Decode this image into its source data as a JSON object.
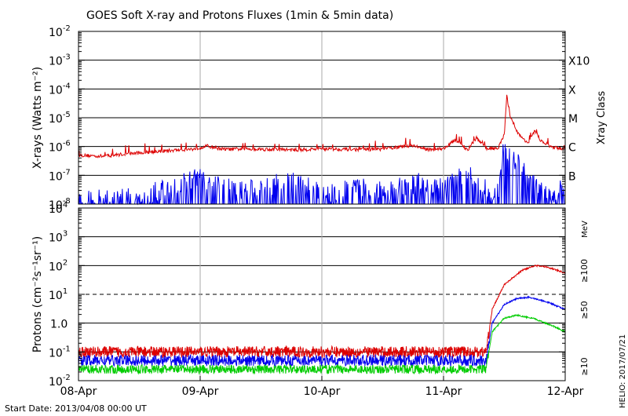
{
  "chart_data": [
    {
      "type": "line",
      "title": "GOES Soft X-ray and Protons Fluxes   (1min & 5min data)",
      "ylabel": "X-rays (Watts m⁻²)",
      "yscale": "log",
      "ylim_exp": [
        -8,
        -2
      ],
      "ytick_exps": [
        -8,
        -7,
        -6,
        -5,
        -4,
        -3,
        -2
      ],
      "right_axis_label": "Xray Class",
      "class_labels": [
        {
          "label": "B",
          "exp": -7
        },
        {
          "label": "C",
          "exp": -6
        },
        {
          "label": "M",
          "exp": -5
        },
        {
          "label": "X",
          "exp": -4
        },
        {
          "label": "X10",
          "exp": -3
        }
      ],
      "x": [
        "08-Apr",
        "09-Apr",
        "10-Apr",
        "11-Apr",
        "12-Apr"
      ],
      "grid": true,
      "series": [
        {
          "color": "#dd0000",
          "points": [
            [
              0.0,
              5e-07
            ],
            [
              0.2,
              4.6e-07
            ],
            [
              0.4,
              5.6e-07
            ],
            [
              0.6,
              6.5e-07
            ],
            [
              0.8,
              7.5e-07
            ],
            [
              0.95,
              8.2e-07
            ],
            [
              1.05,
              1.05e-06
            ],
            [
              1.2,
              8e-07
            ],
            [
              1.4,
              8.3e-07
            ],
            [
              1.8,
              7.6e-07
            ],
            [
              2.0,
              8.4e-07
            ],
            [
              2.3,
              7.8e-07
            ],
            [
              2.5,
              8.2e-07
            ],
            [
              2.75,
              1.1e-06
            ],
            [
              2.85,
              8e-07
            ],
            [
              3.0,
              8.4e-07
            ],
            [
              3.1,
              1.7e-06
            ],
            [
              3.2,
              7.6e-07
            ],
            [
              3.27,
              2e-06
            ],
            [
              3.35,
              8.5e-07
            ],
            [
              3.45,
              9e-07
            ],
            [
              3.5,
              2.6e-06
            ],
            [
              3.52,
              5.5e-05
            ],
            [
              3.55,
              1.1e-05
            ],
            [
              3.62,
              2.5e-06
            ],
            [
              3.7,
              1.3e-06
            ],
            [
              3.75,
              3.5e-06
            ],
            [
              3.8,
              1.6e-06
            ],
            [
              3.9,
              9e-07
            ],
            [
              4.0,
              8.5e-07
            ]
          ]
        },
        {
          "color": "#0000ee",
          "points": [
            [
              0.0,
              1e-08
            ],
            [
              0.5,
              1.2e-08
            ],
            [
              0.8,
              3.5e-08
            ],
            [
              1.0,
              6e-08
            ],
            [
              1.3,
              2e-08
            ],
            [
              1.8,
              5e-08
            ],
            [
              2.0,
              1.5e-08
            ],
            [
              2.3,
              3e-08
            ],
            [
              2.5,
              2e-08
            ],
            [
              2.8,
              4e-08
            ],
            [
              3.0,
              2.5e-08
            ],
            [
              3.2,
              1e-07
            ],
            [
              3.35,
              2.5e-08
            ],
            [
              3.45,
              2e-08
            ],
            [
              3.5,
              1e-06
            ],
            [
              3.55,
              2.5e-07
            ],
            [
              3.65,
              1.5e-07
            ],
            [
              3.7,
              5e-08
            ],
            [
              3.8,
              2e-08
            ],
            [
              3.9,
              1e-08
            ],
            [
              4.0,
              4e-08
            ]
          ]
        }
      ]
    },
    {
      "type": "line",
      "ylabel": "Protons (cm⁻²s⁻¹sr⁻¹)",
      "yscale": "log",
      "ylim_exp": [
        -2,
        4
      ],
      "ytick_labels": [
        "10⁻²",
        "10⁻¹",
        "1.0",
        "10¹",
        "10²",
        "10³",
        "10⁴"
      ],
      "threshold": 10,
      "unit_label": "MeV",
      "x": [
        "08-Apr",
        "09-Apr",
        "10-Apr",
        "11-Apr",
        "12-Apr"
      ],
      "grid": true,
      "series": [
        {
          "name": "≥10",
          "color": "#dd0000",
          "points": [
            [
              0.0,
              0.1
            ],
            [
              3.35,
              0.1
            ],
            [
              3.4,
              3.0
            ],
            [
              3.5,
              22
            ],
            [
              3.65,
              70
            ],
            [
              3.75,
              100
            ],
            [
              3.85,
              90
            ],
            [
              4.0,
              55
            ]
          ]
        },
        {
          "name": "≥50",
          "color": "#0000ee",
          "points": [
            [
              0.0,
              0.05
            ],
            [
              3.35,
              0.05
            ],
            [
              3.4,
              1.0
            ],
            [
              3.5,
              4.5
            ],
            [
              3.6,
              7.0
            ],
            [
              3.7,
              8.0
            ],
            [
              3.85,
              5.5
            ],
            [
              4.0,
              3.0
            ]
          ]
        },
        {
          "name": "≥100",
          "color": "#00cc00",
          "points": [
            [
              0.0,
              0.025
            ],
            [
              3.35,
              0.025
            ],
            [
              3.4,
              0.5
            ],
            [
              3.5,
              1.5
            ],
            [
              3.6,
              1.9
            ],
            [
              3.75,
              1.4
            ],
            [
              3.9,
              0.8
            ],
            [
              4.0,
              0.5
            ]
          ]
        }
      ]
    }
  ],
  "footer": {
    "start_date": "Start Date: 2013/04/08 00:00 UT",
    "credit": "HELIO: 2017/07/21"
  }
}
